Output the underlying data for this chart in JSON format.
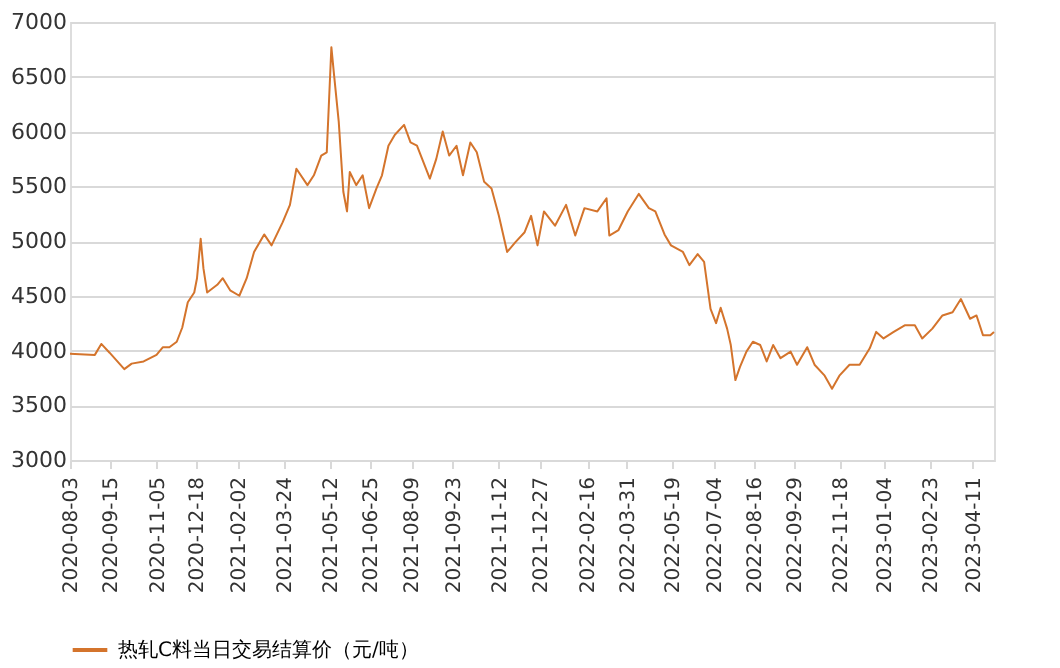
{
  "chart_data": {
    "type": "line",
    "x": [
      "2020-08-03",
      "2020-08-30",
      "2020-09-06",
      "2020-09-15",
      "2020-10-01",
      "2020-10-09",
      "2020-10-22",
      "2020-11-05",
      "2020-11-12",
      "2020-11-19",
      "2020-11-27",
      "2020-12-03",
      "2020-12-09",
      "2020-12-16",
      "2020-12-19",
      "2020-12-23",
      "2020-12-26",
      "2020-12-30",
      "2021-01-10",
      "2021-01-16",
      "2021-01-24",
      "2021-02-03",
      "2021-02-11",
      "2021-02-19",
      "2021-03-02",
      "2021-03-10",
      "2021-03-22",
      "2021-03-30",
      "2021-04-06",
      "2021-04-18",
      "2021-04-25",
      "2021-05-03",
      "2021-05-09",
      "2021-05-14",
      "2021-05-17",
      "2021-05-22",
      "2021-05-27",
      "2021-05-31",
      "2021-06-03",
      "2021-06-10",
      "2021-06-17",
      "2021-06-24",
      "2021-07-02",
      "2021-07-08",
      "2021-07-15",
      "2021-07-22",
      "2021-08-01",
      "2021-08-08",
      "2021-08-15",
      "2021-08-22",
      "2021-08-29",
      "2021-09-05",
      "2021-09-12",
      "2021-09-19",
      "2021-09-27",
      "2021-10-04",
      "2021-10-12",
      "2021-10-19",
      "2021-10-27",
      "2021-11-04",
      "2021-11-12",
      "2021-11-21",
      "2021-11-30",
      "2021-12-10",
      "2021-12-17",
      "2021-12-24",
      "2021-12-31",
      "2022-01-12",
      "2022-01-24",
      "2022-02-03",
      "2022-02-13",
      "2022-02-27",
      "2022-03-09",
      "2022-03-12",
      "2022-03-22",
      "2022-04-01",
      "2022-04-13",
      "2022-04-24",
      "2022-05-01",
      "2022-05-11",
      "2022-05-18",
      "2022-05-31",
      "2022-06-07",
      "2022-06-16",
      "2022-06-23",
      "2022-06-30",
      "2022-07-06",
      "2022-07-11",
      "2022-07-18",
      "2022-07-22",
      "2022-07-27",
      "2022-08-01",
      "2022-08-08",
      "2022-08-15",
      "2022-08-23",
      "2022-08-30",
      "2022-09-06",
      "2022-09-14",
      "2022-09-25",
      "2022-10-02",
      "2022-10-13",
      "2022-10-21",
      "2022-11-01",
      "2022-11-09",
      "2022-11-17",
      "2022-11-28",
      "2022-12-09",
      "2022-12-20",
      "2022-12-27",
      "2023-01-04",
      "2023-01-15",
      "2023-01-27",
      "2023-02-07",
      "2023-02-15",
      "2023-02-26",
      "2023-03-09",
      "2023-03-20",
      "2023-03-29",
      "2023-04-08",
      "2023-04-15",
      "2023-04-22",
      "2023-04-30",
      "2023-05-04"
    ],
    "series": [
      {
        "name": "热轧C料当日交易结算价（元/吨）",
        "color": "#d4742c",
        "values": [
          3970,
          3960,
          4060,
          3980,
          3830,
          3880,
          3900,
          3960,
          4030,
          4030,
          4080,
          4210,
          4440,
          4530,
          4660,
          5020,
          4750,
          4530,
          4600,
          4660,
          4550,
          4500,
          4660,
          4900,
          5060,
          4960,
          5170,
          5330,
          5660,
          5510,
          5600,
          5780,
          5810,
          6770,
          6510,
          6090,
          5450,
          5270,
          5630,
          5510,
          5600,
          5300,
          5480,
          5600,
          5870,
          5970,
          6060,
          5900,
          5870,
          5720,
          5570,
          5750,
          6000,
          5780,
          5870,
          5600,
          5900,
          5810,
          5540,
          5480,
          5230,
          4900,
          4990,
          5080,
          5230,
          4960,
          5270,
          5140,
          5330,
          5050,
          5300,
          5270,
          5390,
          5050,
          5100,
          5270,
          5430,
          5300,
          5270,
          5060,
          4960,
          4900,
          4780,
          4880,
          4810,
          4380,
          4250,
          4390,
          4200,
          4050,
          3730,
          3850,
          3990,
          4080,
          4050,
          3900,
          4050,
          3930,
          3990,
          3870,
          4030,
          3870,
          3770,
          3650,
          3770,
          3870,
          3870,
          4020,
          4170,
          4110,
          4170,
          4230,
          4230,
          4110,
          4200,
          4320,
          4350,
          4470,
          4290,
          4320,
          4140,
          4140,
          4170
        ]
      }
    ],
    "xlim": [
      "2020-08-03",
      "2023-05-04"
    ],
    "xticks": [
      "2020-08-03",
      "2020-09-15",
      "2020-11-05",
      "2020-12-18",
      "2021-02-02",
      "2021-03-24",
      "2021-05-12",
      "2021-06-25",
      "2021-08-09",
      "2021-09-23",
      "2021-11-12",
      "2021-12-27",
      "2022-02-16",
      "2022-03-31",
      "2022-05-19",
      "2022-07-04",
      "2022-08-16",
      "2022-09-29",
      "2022-11-18",
      "2023-01-04",
      "2023-02-23",
      "2023-04-11"
    ],
    "ylim": [
      3000,
      7000
    ],
    "yticks": [
      3000,
      3500,
      4000,
      4500,
      5000,
      5500,
      6000,
      6500,
      7000
    ],
    "grid": "y",
    "legend": "bottom",
    "marker": "none",
    "line_style": "solid"
  }
}
